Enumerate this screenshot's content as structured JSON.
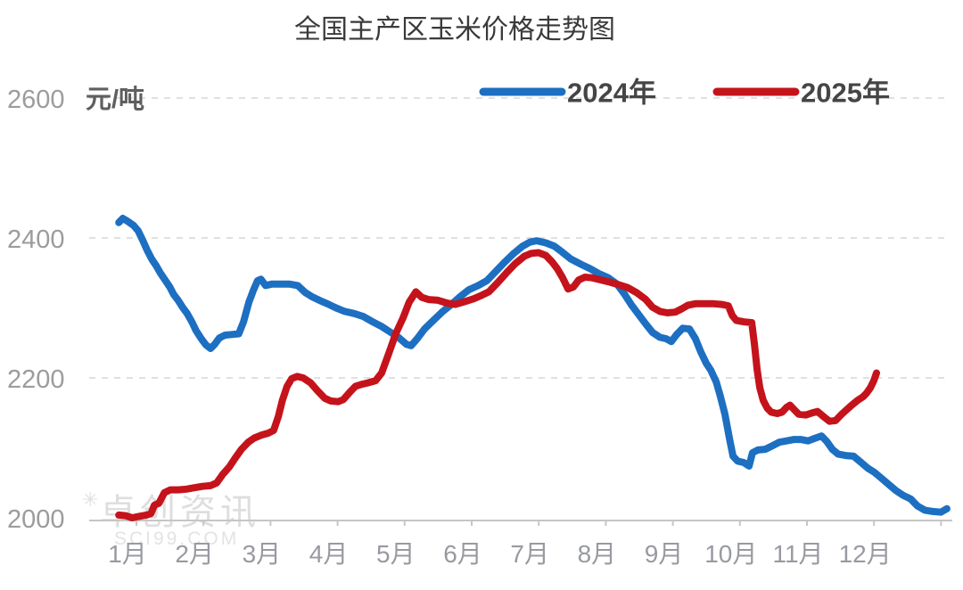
{
  "title": "全国主产区玉米价格走势图",
  "y_axis": {
    "unit": "元/吨"
  },
  "legend": [
    {
      "label": "2024年",
      "color": "#1d6fc1"
    },
    {
      "label": "2025年",
      "color": "#c5131b"
    }
  ],
  "watermark": {
    "logo": "✳",
    "line1": "卓创资讯",
    "line2": "SCI99.COM"
  },
  "colors": {
    "grid": "#d6d6d6",
    "axis": "#c6c6c6",
    "background": "#ffffff"
  },
  "chart_data": {
    "type": "line",
    "title": "全国主产区玉米价格走势图",
    "ylabel": "元/吨",
    "ylim": [
      2000,
      2600
    ],
    "y_ticks": [
      2600,
      2400,
      2200,
      2000
    ],
    "x_tick_labels": [
      "1月",
      "2月",
      "3月",
      "4月",
      "5月",
      "6月",
      "7月",
      "8月",
      "9月",
      "10月",
      "11月",
      "12月"
    ],
    "grid": "horizontal-dashed",
    "legend_position": "top",
    "x_unit": "month (1 = start of January)",
    "series": [
      {
        "name": "2024年",
        "color": "#1d6fc1",
        "points": [
          [
            0.87,
            2422
          ],
          [
            0.93,
            2428
          ],
          [
            1.0,
            2424
          ],
          [
            1.09,
            2418
          ],
          [
            1.16,
            2410
          ],
          [
            1.23,
            2396
          ],
          [
            1.29,
            2383
          ],
          [
            1.36,
            2370
          ],
          [
            1.43,
            2360
          ],
          [
            1.49,
            2350
          ],
          [
            1.56,
            2340
          ],
          [
            1.63,
            2330
          ],
          [
            1.69,
            2319
          ],
          [
            1.76,
            2310
          ],
          [
            1.82,
            2301
          ],
          [
            1.89,
            2292
          ],
          [
            1.96,
            2280
          ],
          [
            2.02,
            2268
          ],
          [
            2.1,
            2256
          ],
          [
            2.17,
            2247
          ],
          [
            2.24,
            2242
          ],
          [
            2.3,
            2248
          ],
          [
            2.37,
            2257
          ],
          [
            2.45,
            2261
          ],
          [
            2.56,
            2262
          ],
          [
            2.66,
            2263
          ],
          [
            2.73,
            2280
          ],
          [
            2.81,
            2308
          ],
          [
            2.88,
            2326
          ],
          [
            2.94,
            2339
          ],
          [
            2.99,
            2341
          ],
          [
            3.06,
            2332
          ],
          [
            3.15,
            2334
          ],
          [
            3.29,
            2334
          ],
          [
            3.42,
            2334
          ],
          [
            3.54,
            2332
          ],
          [
            3.65,
            2322
          ],
          [
            3.75,
            2316
          ],
          [
            3.86,
            2311
          ],
          [
            3.98,
            2306
          ],
          [
            4.11,
            2300
          ],
          [
            4.24,
            2295
          ],
          [
            4.38,
            2292
          ],
          [
            4.51,
            2288
          ],
          [
            4.64,
            2281
          ],
          [
            4.78,
            2274
          ],
          [
            4.91,
            2266
          ],
          [
            5.04,
            2258
          ],
          [
            5.16,
            2248
          ],
          [
            5.23,
            2246
          ],
          [
            5.32,
            2256
          ],
          [
            5.43,
            2270
          ],
          [
            5.56,
            2282
          ],
          [
            5.69,
            2294
          ],
          [
            5.83,
            2305
          ],
          [
            5.96,
            2316
          ],
          [
            6.09,
            2326
          ],
          [
            6.23,
            2332
          ],
          [
            6.36,
            2339
          ],
          [
            6.49,
            2352
          ],
          [
            6.63,
            2366
          ],
          [
            6.76,
            2378
          ],
          [
            6.89,
            2388
          ],
          [
            7.0,
            2394
          ],
          [
            7.1,
            2396
          ],
          [
            7.24,
            2393
          ],
          [
            7.37,
            2388
          ],
          [
            7.48,
            2380
          ],
          [
            7.61,
            2370
          ],
          [
            7.77,
            2362
          ],
          [
            7.9,
            2356
          ],
          [
            8.03,
            2349
          ],
          [
            8.17,
            2343
          ],
          [
            8.3,
            2334
          ],
          [
            8.41,
            2320
          ],
          [
            8.51,
            2305
          ],
          [
            8.62,
            2291
          ],
          [
            8.73,
            2277
          ],
          [
            8.83,
            2265
          ],
          [
            8.94,
            2258
          ],
          [
            9.03,
            2256
          ],
          [
            9.11,
            2252
          ],
          [
            9.19,
            2262
          ],
          [
            9.28,
            2271
          ],
          [
            9.38,
            2270
          ],
          [
            9.47,
            2256
          ],
          [
            9.55,
            2237
          ],
          [
            9.63,
            2221
          ],
          [
            9.7,
            2211
          ],
          [
            9.78,
            2194
          ],
          [
            9.84,
            2174
          ],
          [
            9.91,
            2148
          ],
          [
            9.98,
            2112
          ],
          [
            10.03,
            2088
          ],
          [
            10.1,
            2081
          ],
          [
            10.19,
            2079
          ],
          [
            10.27,
            2074
          ],
          [
            10.32,
            2093
          ],
          [
            10.4,
            2097
          ],
          [
            10.51,
            2098
          ],
          [
            10.62,
            2103
          ],
          [
            10.72,
            2108
          ],
          [
            10.83,
            2110
          ],
          [
            10.94,
            2112
          ],
          [
            11.04,
            2112
          ],
          [
            11.15,
            2110
          ],
          [
            11.26,
            2114
          ],
          [
            11.35,
            2117
          ],
          [
            11.43,
            2109
          ],
          [
            11.51,
            2098
          ],
          [
            11.6,
            2091
          ],
          [
            11.71,
            2089
          ],
          [
            11.83,
            2088
          ],
          [
            11.93,
            2080
          ],
          [
            12.04,
            2071
          ],
          [
            12.14,
            2065
          ],
          [
            12.25,
            2056
          ],
          [
            12.36,
            2047
          ],
          [
            12.46,
            2039
          ],
          [
            12.57,
            2032
          ],
          [
            12.68,
            2027
          ],
          [
            12.78,
            2017
          ],
          [
            12.89,
            2011
          ],
          [
            13.01,
            2009
          ],
          [
            13.13,
            2008
          ],
          [
            13.22,
            2013
          ]
        ]
      },
      {
        "name": "2025年",
        "color": "#c5131b",
        "points": [
          [
            0.87,
            2004
          ],
          [
            0.97,
            2003
          ],
          [
            1.07,
            2000
          ],
          [
            1.17,
            2002
          ],
          [
            1.28,
            2004
          ],
          [
            1.35,
            2006
          ],
          [
            1.4,
            2018
          ],
          [
            1.47,
            2021
          ],
          [
            1.55,
            2036
          ],
          [
            1.64,
            2040
          ],
          [
            1.76,
            2040
          ],
          [
            1.88,
            2041
          ],
          [
            2.0,
            2043
          ],
          [
            2.12,
            2045
          ],
          [
            2.24,
            2046
          ],
          [
            2.33,
            2050
          ],
          [
            2.42,
            2062
          ],
          [
            2.52,
            2073
          ],
          [
            2.61,
            2086
          ],
          [
            2.7,
            2098
          ],
          [
            2.8,
            2108
          ],
          [
            2.89,
            2114
          ],
          [
            2.99,
            2118
          ],
          [
            3.1,
            2121
          ],
          [
            3.18,
            2125
          ],
          [
            3.25,
            2145
          ],
          [
            3.31,
            2168
          ],
          [
            3.38,
            2188
          ],
          [
            3.45,
            2199
          ],
          [
            3.53,
            2202
          ],
          [
            3.62,
            2200
          ],
          [
            3.73,
            2193
          ],
          [
            3.83,
            2182
          ],
          [
            3.94,
            2171
          ],
          [
            4.03,
            2167
          ],
          [
            4.14,
            2166
          ],
          [
            4.22,
            2169
          ],
          [
            4.31,
            2179
          ],
          [
            4.4,
            2188
          ],
          [
            4.5,
            2191
          ],
          [
            4.59,
            2193
          ],
          [
            4.7,
            2196
          ],
          [
            4.79,
            2207
          ],
          [
            4.9,
            2236
          ],
          [
            5.0,
            2263
          ],
          [
            5.11,
            2286
          ],
          [
            5.2,
            2308
          ],
          [
            5.3,
            2323
          ],
          [
            5.39,
            2315
          ],
          [
            5.49,
            2312
          ],
          [
            5.63,
            2311
          ],
          [
            5.76,
            2307
          ],
          [
            5.89,
            2305
          ],
          [
            6.03,
            2309
          ],
          [
            6.16,
            2313
          ],
          [
            6.28,
            2318
          ],
          [
            6.39,
            2323
          ],
          [
            6.52,
            2336
          ],
          [
            6.65,
            2350
          ],
          [
            6.78,
            2363
          ],
          [
            6.92,
            2374
          ],
          [
            7.02,
            2378
          ],
          [
            7.13,
            2379
          ],
          [
            7.24,
            2375
          ],
          [
            7.33,
            2366
          ],
          [
            7.41,
            2356
          ],
          [
            7.49,
            2343
          ],
          [
            7.57,
            2327
          ],
          [
            7.65,
            2330
          ],
          [
            7.73,
            2340
          ],
          [
            7.82,
            2344
          ],
          [
            7.93,
            2343
          ],
          [
            8.06,
            2340
          ],
          [
            8.19,
            2337
          ],
          [
            8.33,
            2333
          ],
          [
            8.46,
            2329
          ],
          [
            8.59,
            2322
          ],
          [
            8.73,
            2312
          ],
          [
            8.83,
            2301
          ],
          [
            8.94,
            2295
          ],
          [
            9.05,
            2293
          ],
          [
            9.17,
            2294
          ],
          [
            9.27,
            2299
          ],
          [
            9.36,
            2304
          ],
          [
            9.47,
            2306
          ],
          [
            9.6,
            2306
          ],
          [
            9.74,
            2306
          ],
          [
            9.87,
            2305
          ],
          [
            9.96,
            2303
          ],
          [
            10.02,
            2289
          ],
          [
            10.08,
            2282
          ],
          [
            10.2,
            2280
          ],
          [
            10.31,
            2279
          ],
          [
            10.35,
            2248
          ],
          [
            10.39,
            2212
          ],
          [
            10.43,
            2186
          ],
          [
            10.48,
            2168
          ],
          [
            10.54,
            2157
          ],
          [
            10.6,
            2151
          ],
          [
            10.69,
            2149
          ],
          [
            10.76,
            2151
          ],
          [
            10.83,
            2158
          ],
          [
            10.88,
            2161
          ],
          [
            10.95,
            2154
          ],
          [
            11.01,
            2148
          ],
          [
            11.12,
            2147
          ],
          [
            11.21,
            2150
          ],
          [
            11.29,
            2152
          ],
          [
            11.39,
            2144
          ],
          [
            11.47,
            2138
          ],
          [
            11.56,
            2139
          ],
          [
            11.64,
            2147
          ],
          [
            11.72,
            2154
          ],
          [
            11.8,
            2161
          ],
          [
            11.89,
            2168
          ],
          [
            11.97,
            2173
          ],
          [
            12.02,
            2178
          ],
          [
            12.08,
            2186
          ],
          [
            12.13,
            2196
          ],
          [
            12.17,
            2207
          ]
        ]
      }
    ]
  }
}
